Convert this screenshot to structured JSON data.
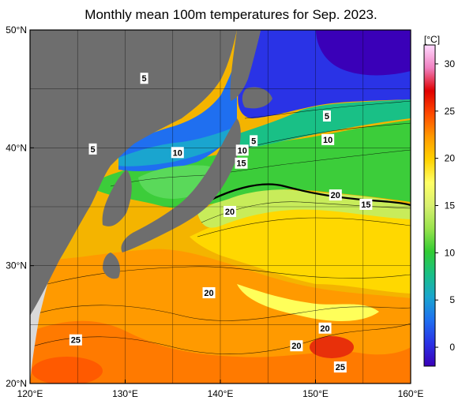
{
  "title": "Monthly mean 100m temperatures for Sep. 2023.",
  "map": {
    "lon_range": [
      120,
      160
    ],
    "lat_range": [
      20,
      50
    ],
    "lon_ticks": [
      "120°E",
      "130°E",
      "140°E",
      "150°E",
      "160°E"
    ],
    "lat_ticks": [
      "20°N",
      "30°N",
      "40°N",
      "50°N"
    ],
    "grid": "every 5°",
    "land_color": "#6e6e6e",
    "neighbor_land_color": "#d9d9d9",
    "contour_interval_degC": 1,
    "labeled_contours": [
      {
        "text": "5",
        "lon": 132.0,
        "lat": 45.9
      },
      {
        "text": "5",
        "lon": 151.2,
        "lat": 42.7
      },
      {
        "text": "5",
        "lon": 143.5,
        "lat": 40.6
      },
      {
        "text": "5",
        "lon": 126.6,
        "lat": 39.9
      },
      {
        "text": "10",
        "lon": 151.3,
        "lat": 40.7
      },
      {
        "text": "10",
        "lon": 142.3,
        "lat": 39.8
      },
      {
        "text": "10",
        "lon": 135.5,
        "lat": 39.6
      },
      {
        "text": "15",
        "lon": 142.2,
        "lat": 38.7
      },
      {
        "text": "15",
        "lon": 155.3,
        "lat": 35.2
      },
      {
        "text": "20",
        "lon": 152.1,
        "lat": 36.0
      },
      {
        "text": "20",
        "lon": 141.0,
        "lat": 34.6
      },
      {
        "text": "20",
        "lon": 138.8,
        "lat": 27.7
      },
      {
        "text": "20",
        "lon": 151.0,
        "lat": 24.7
      },
      {
        "text": "20",
        "lon": 148.0,
        "lat": 23.2
      },
      {
        "text": "25",
        "lon": 124.8,
        "lat": 23.7
      },
      {
        "text": "25",
        "lon": 152.6,
        "lat": 21.4
      }
    ]
  },
  "colorbar": {
    "unit": "[°C]",
    "ticks": [
      "0",
      "5",
      "10",
      "15",
      "20",
      "25",
      "30"
    ],
    "range": [
      -2,
      32
    ],
    "stops": [
      "#3a00b8",
      "#2a33e6",
      "#1f6ff0",
      "#1aa5cf",
      "#19c086",
      "#33cc33",
      "#99e34d",
      "#d8f070",
      "#ffff66",
      "#ffd200",
      "#ff9a00",
      "#ff4a00",
      "#e00000",
      "#f080c0",
      "#ffd9ff"
    ]
  }
}
